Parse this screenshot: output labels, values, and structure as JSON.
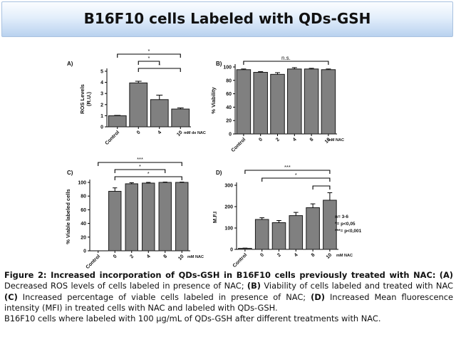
{
  "title": "B16F10 cells Labeled with QDs-GSH",
  "chart_data": [
    {
      "type": "bar",
      "panel_label": "A)",
      "ylabel": "ROS Levels\n(R.U.)",
      "xlabel": "mM de NAC",
      "categories": [
        "Control",
        "0",
        "4",
        "10"
      ],
      "values": [
        1.0,
        3.95,
        2.45,
        1.6
      ],
      "errors": [
        0.03,
        0.15,
        0.4,
        0.1
      ],
      "ylim": [
        0,
        5
      ],
      "yticks": [
        0,
        1,
        2,
        3,
        4,
        5
      ],
      "significance": [
        {
          "label": "*",
          "from": 0,
          "to": 3
        },
        {
          "label": "*",
          "from": 1,
          "to": 2
        },
        {
          "label": "*",
          "from": 1,
          "to": 3
        }
      ]
    },
    {
      "type": "bar",
      "panel_label": "B)",
      "ylabel": "% Viability",
      "xlabel": "mM NAC",
      "categories": [
        "Control",
        "0",
        "2",
        "4",
        "8",
        "10"
      ],
      "values": [
        96,
        92,
        89,
        97,
        97,
        96
      ],
      "errors": [
        1,
        1,
        2.5,
        2,
        1,
        1
      ],
      "ylim": [
        0,
        100
      ],
      "yticks": [
        0,
        20,
        40,
        60,
        80,
        100
      ],
      "significance": [
        {
          "label": "n.s.",
          "from": 0,
          "to": 5
        }
      ]
    },
    {
      "type": "bar",
      "panel_label": "C)",
      "ylabel": "% Viable labeled cells",
      "xlabel": "mM NAC",
      "categories": [
        "Control",
        "0",
        "2",
        "4",
        "8",
        "10"
      ],
      "values": [
        0,
        87,
        98,
        99,
        100,
        100
      ],
      "errors": [
        0,
        5,
        1.5,
        1,
        0.5,
        0.5
      ],
      "ylim": [
        0,
        100
      ],
      "yticks": [
        0,
        20,
        40,
        60,
        80,
        100
      ],
      "significance": [
        {
          "label": "***",
          "from": 0,
          "to": 5
        },
        {
          "label": "*",
          "from": 1,
          "to": 4
        },
        {
          "label": "*",
          "from": 1,
          "to": 5
        }
      ]
    },
    {
      "type": "bar",
      "panel_label": "D)",
      "ylabel": "M.F.I",
      "xlabel": "mM NAC",
      "categories": [
        "Control",
        "0",
        "2",
        "4",
        "8",
        "10"
      ],
      "values": [
        5,
        140,
        125,
        158,
        195,
        230
      ],
      "errors": [
        1,
        8,
        10,
        15,
        18,
        35
      ],
      "ylim": [
        0,
        300
      ],
      "yticks": [
        0,
        100,
        200,
        300
      ],
      "significance": [
        {
          "label": "***",
          "from": 0,
          "to": 5
        },
        {
          "label": "*",
          "from": 1,
          "to": 5
        },
        {
          "label": "",
          "from": 4,
          "to": 5
        }
      ],
      "annotations": [
        "n= 3-6",
        "*= p<0,05",
        "***= p<0,001"
      ]
    }
  ],
  "caption": {
    "figure_label": "Figure 2: Increased incorporation of QDs-GSH in B16F10 cells previously treated with NAC:",
    "part_a_label": "(A)",
    "part_a": "Decreased ROS levels of cells labeled in presence of NAC;",
    "part_b_label": "(B)",
    "part_b": "Viability of cells labeled and treated with NAC",
    "part_c_label": "(C)",
    "part_c": "Increased percentage of viable cells labeled in presence of NAC;",
    "part_d_label": "(D)",
    "part_d": "Increased Mean fluorescence intensity (MFI) in treated cells with NAC and labeled with QDs-GSH.",
    "note": "B16F10 cells where labeled with 100 µg/mL of QDs-GSH after different treatments with NAC."
  }
}
